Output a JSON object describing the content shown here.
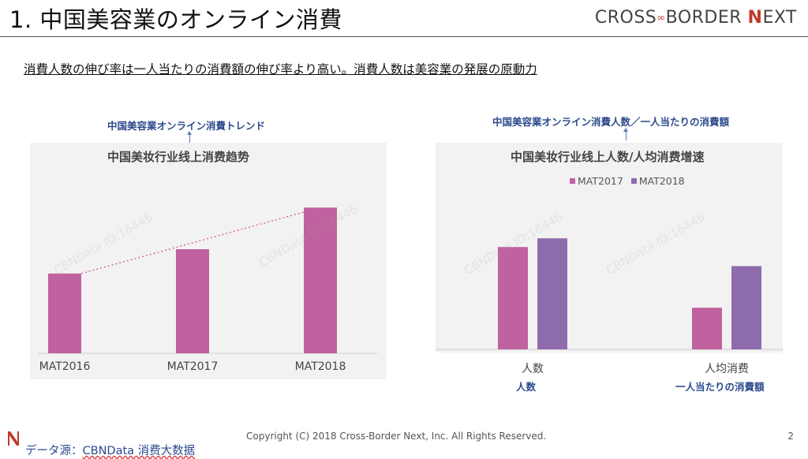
{
  "header": {
    "title": "1. 中国美容業のオンライン消費",
    "logo": {
      "left": "CROSS",
      "right": "BORDER",
      "n": "N",
      "ext": "EXT"
    }
  },
  "subtitle": "消費人数の伸び率は一人当たりの消費額の伸び率より高い。消費人数は美容業の発展の原動力",
  "annotations": {
    "left_note": "中国美容業オンライン消費トレンド",
    "right_note": "中国美容業オンライン消費人数／一人当たりの消費額",
    "below_left_cat": "人数",
    "below_right_cat": "一人当たりの消費額"
  },
  "watermark": "CBNData ID:16446",
  "chart_data": [
    {
      "type": "bar",
      "title": "中国美妆行业线上消费趋势",
      "categories": [
        "MAT2016",
        "MAT2017",
        "MAT2018"
      ],
      "values": [
        46,
        60,
        84
      ],
      "ylim": [
        0,
        100
      ],
      "trendline": true,
      "color": "#c0629f",
      "grid": false
    },
    {
      "type": "bar",
      "title": "中国美妆行业线上人数/人均消费增速",
      "categories": [
        "人数",
        "人均消费"
      ],
      "series": [
        {
          "name": "MAT2017",
          "values": [
            59,
            24
          ],
          "color": "#c0629f"
        },
        {
          "name": "MAT2018",
          "values": [
            64,
            48
          ],
          "color": "#8e6bab"
        }
      ],
      "ylim": [
        0,
        100
      ],
      "legend": "top-center",
      "grid": false
    }
  ],
  "footer": {
    "source_prefix": "データ源：",
    "source_name": "CBNData 消费大数据",
    "copyright": "Copyright (C) 2018 Cross-Border Next, Inc. All Rights Reserved.",
    "page": "2"
  },
  "colors": {
    "accent": "#c0392b",
    "note": "#2b4a8c",
    "bar1": "#c0629f",
    "bar2": "#8e6bab"
  }
}
